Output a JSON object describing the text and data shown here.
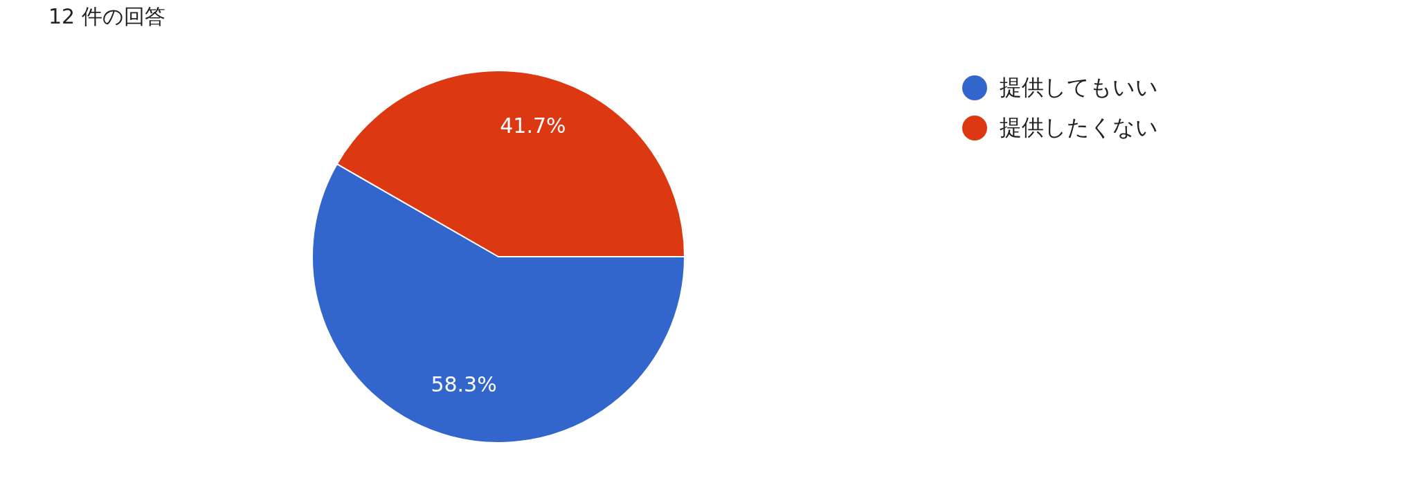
{
  "chart_data": {
    "type": "pie",
    "subtitle": "12 件の回答",
    "categories": [
      "提供してもいい",
      "提供したくない"
    ],
    "values": [
      58.3,
      41.7
    ],
    "colors": [
      "#3366cc",
      "#dc3912"
    ],
    "value_labels": [
      "58.3%",
      "41.7%"
    ],
    "legend": "top right"
  }
}
